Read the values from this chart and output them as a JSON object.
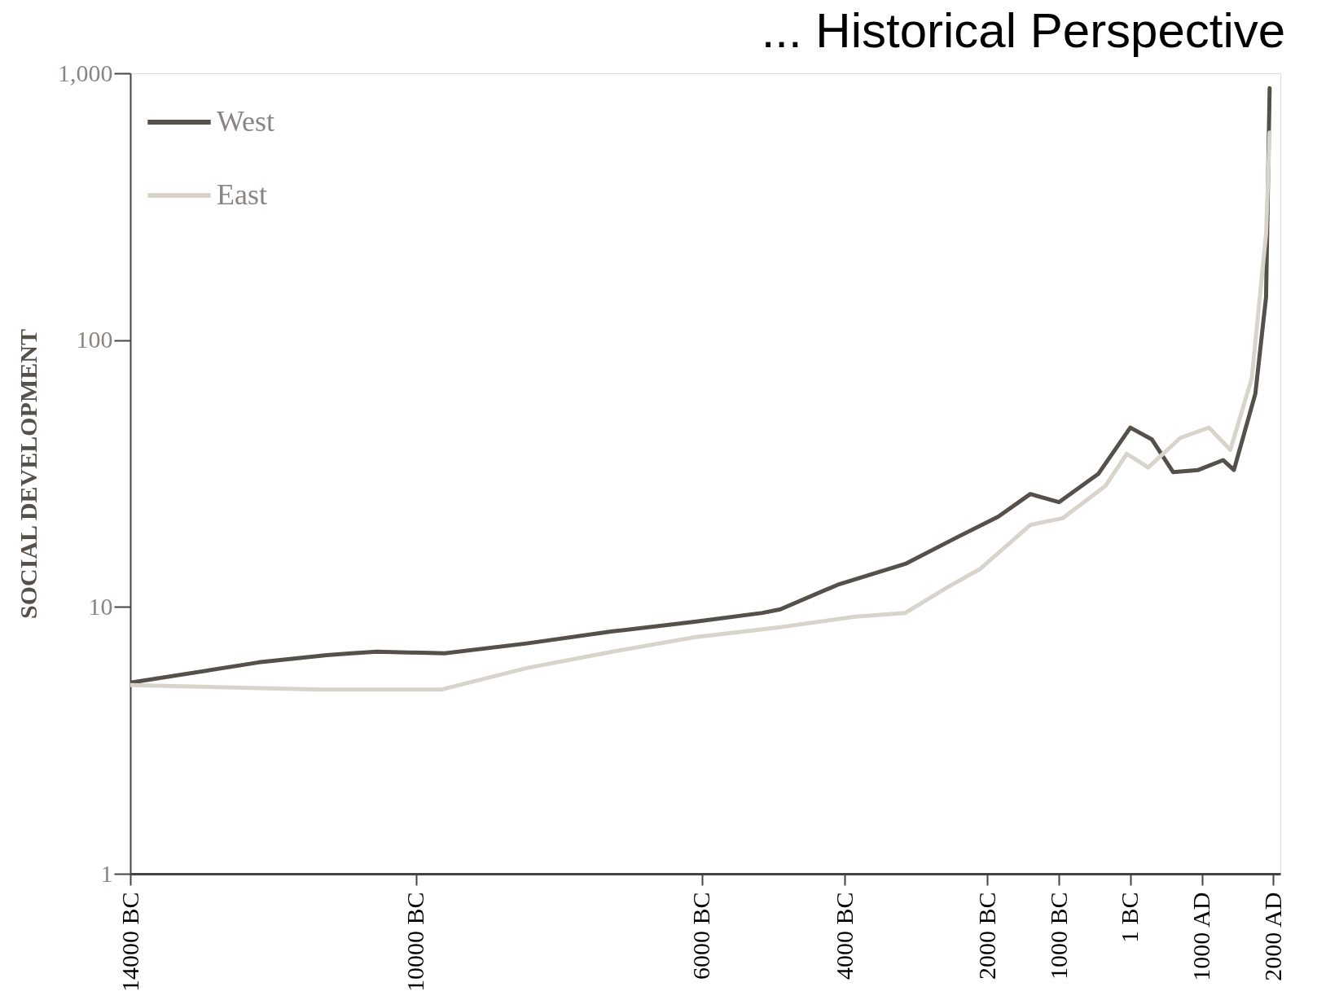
{
  "chart_data": {
    "type": "line",
    "title": "... Historical Perspective",
    "ylabel": "SOCIAL DEVELOPMENT",
    "log": true,
    "grid": false,
    "legend": "top left",
    "marker": "none",
    "line_style": "solid",
    "xlim": [
      -14000,
      2100
    ],
    "ylim": [
      1,
      1000
    ],
    "xticks": [
      {
        "value": -14000,
        "label": "14000 BC"
      },
      {
        "value": -10000,
        "label": "10000 BC"
      },
      {
        "value": -6000,
        "label": "6000 BC"
      },
      {
        "value": -4000,
        "label": "4000 BC"
      },
      {
        "value": -2000,
        "label": "2000 BC"
      },
      {
        "value": -1000,
        "label": "1000 BC"
      },
      {
        "value": -1,
        "label": "1 BC"
      },
      {
        "value": 1000,
        "label": "1000 AD"
      },
      {
        "value": 2000,
        "label": "2000 AD"
      }
    ],
    "yticks": [
      1,
      10,
      100,
      {
        "value": 1000,
        "label": "1,000"
      }
    ],
    "series": [
      {
        "name": "West",
        "color": "#55504a",
        "x": [
          -14000,
          -12200,
          -11250,
          -10900,
          -10550,
          -9600,
          -8450,
          -7250,
          -6100,
          -5150,
          -4900,
          -4100,
          -3150,
          -2450,
          -1850,
          -1400,
          -1000,
          -450,
          0,
          300,
          600,
          950,
          1300,
          1450,
          1750,
          1900,
          1950
        ],
        "values": [
          5.2,
          6.2,
          6.6,
          6.7,
          6.8,
          6.7,
          7.3,
          8.1,
          8.8,
          9.5,
          9.8,
          12.1,
          14.5,
          18.1,
          21.8,
          26.5,
          24.7,
          31.5,
          47,
          42.5,
          32,
          32.6,
          35.5,
          32.6,
          63,
          145,
          880
        ]
      },
      {
        "name": "East",
        "color": "#d8d4cc",
        "x": [
          -14000,
          -11350,
          -9650,
          -8450,
          -7250,
          -6100,
          -4900,
          -3850,
          -3150,
          -2550,
          -2100,
          -1400,
          -950,
          -350,
          -50,
          250,
          700,
          1100,
          1400,
          1700,
          1900,
          1950
        ],
        "values": [
          5.1,
          4.9,
          4.9,
          5.9,
          6.8,
          7.7,
          8.4,
          9.2,
          9.5,
          11.9,
          13.9,
          20.3,
          21.5,
          28.4,
          37.5,
          33.3,
          43,
          47,
          38.8,
          72,
          250,
          600
        ]
      }
    ]
  }
}
